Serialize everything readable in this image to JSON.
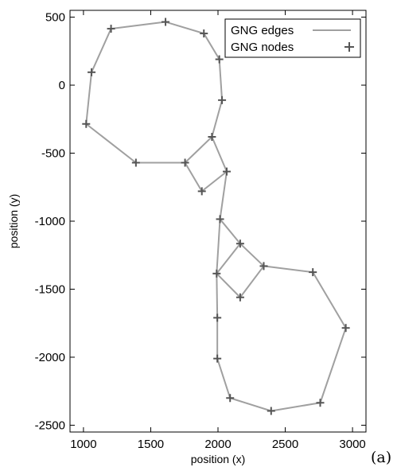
{
  "chart_data": {
    "type": "line",
    "title": "",
    "xlabel": "position (x)",
    "ylabel": "position (y)",
    "xlim": [
      900,
      3100
    ],
    "ylim": [
      -2550,
      550
    ],
    "xticks": [
      1000,
      1500,
      2000,
      2500,
      3000
    ],
    "xtick_labels": [
      "1000",
      "1500",
      "2000",
      "2500",
      "3000"
    ],
    "yticks": [
      500,
      0,
      -500,
      -1000,
      -1500,
      -2000,
      -2500
    ],
    "ytick_labels": [
      "500",
      "0",
      "-500",
      "-1000",
      "-1500",
      "-2000",
      "-2500"
    ],
    "grid": false,
    "legend_position": "top-right",
    "legend": [
      {
        "label": "GNG edges",
        "marker": "line"
      },
      {
        "label": "GNG nodes",
        "marker": "plus"
      }
    ],
    "colors": {
      "edges": "#a0a0a0",
      "nodes": "#555555",
      "frame": "#000000"
    },
    "nodes": [
      {
        "x": 1610,
        "y": 465
      },
      {
        "x": 1895,
        "y": 380
      },
      {
        "x": 2010,
        "y": 190
      },
      {
        "x": 2030,
        "y": -110
      },
      {
        "x": 1955,
        "y": -380
      },
      {
        "x": 1755,
        "y": -570
      },
      {
        "x": 1390,
        "y": -570
      },
      {
        "x": 1020,
        "y": -285
      },
      {
        "x": 1060,
        "y": 95
      },
      {
        "x": 1205,
        "y": 415
      },
      {
        "x": 2065,
        "y": -635
      },
      {
        "x": 1880,
        "y": -780
      },
      {
        "x": 2015,
        "y": -985
      },
      {
        "x": 2165,
        "y": -1165
      },
      {
        "x": 2340,
        "y": -1330
      },
      {
        "x": 1990,
        "y": -1385
      },
      {
        "x": 2165,
        "y": -1560
      },
      {
        "x": 2705,
        "y": -1375
      },
      {
        "x": 2950,
        "y": -1785
      },
      {
        "x": 1995,
        "y": -1710
      },
      {
        "x": 1995,
        "y": -2010
      },
      {
        "x": 2090,
        "y": -2300
      },
      {
        "x": 2395,
        "y": -2395
      },
      {
        "x": 2760,
        "y": -2335
      }
    ],
    "edges": [
      [
        0,
        1
      ],
      [
        1,
        2
      ],
      [
        2,
        3
      ],
      [
        3,
        4
      ],
      [
        4,
        5
      ],
      [
        5,
        6
      ],
      [
        6,
        7
      ],
      [
        7,
        8
      ],
      [
        8,
        9
      ],
      [
        9,
        0
      ],
      [
        4,
        10
      ],
      [
        5,
        11
      ],
      [
        11,
        10
      ],
      [
        10,
        12
      ],
      [
        12,
        13
      ],
      [
        12,
        15
      ],
      [
        13,
        15
      ],
      [
        13,
        14
      ],
      [
        15,
        16
      ],
      [
        14,
        16
      ],
      [
        14,
        17
      ],
      [
        17,
        18
      ],
      [
        18,
        23
      ],
      [
        23,
        22
      ],
      [
        22,
        21
      ],
      [
        21,
        20
      ],
      [
        20,
        19
      ],
      [
        19,
        15
      ]
    ]
  },
  "panel_tag": "(a)"
}
